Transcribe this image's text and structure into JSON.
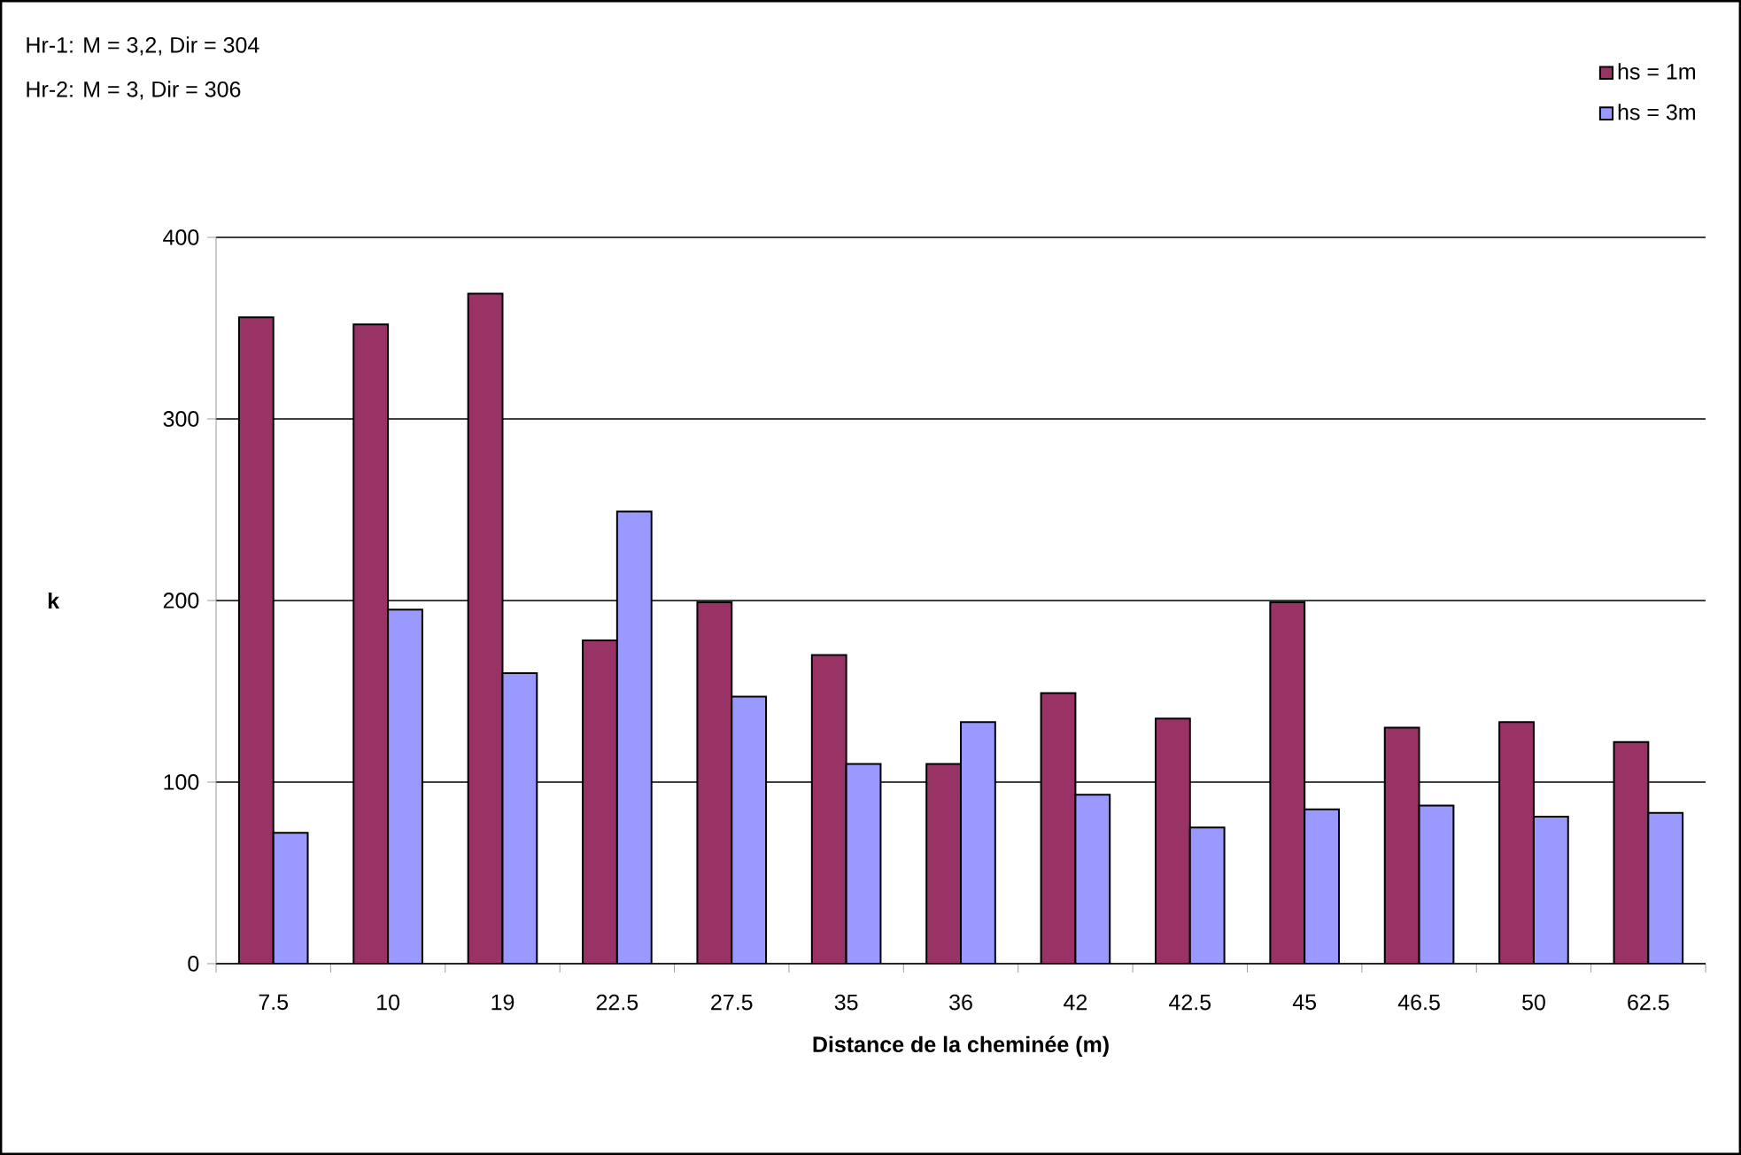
{
  "chart_data": {
    "type": "bar",
    "xlabel": "Distance de la cheminée (m)",
    "ylabel": "k",
    "categories": [
      "7.5",
      "10",
      "19",
      "22.5",
      "27.5",
      "35",
      "36",
      "42",
      "42.5",
      "45",
      "46.5",
      "50",
      "62.5"
    ],
    "series": [
      {
        "name": "hs = 1m",
        "color": "#993366",
        "values": [
          356,
          352,
          369,
          178,
          199,
          170,
          110,
          149,
          135,
          199,
          130,
          133,
          122
        ]
      },
      {
        "name": "hs = 3m",
        "color": "#9999ff",
        "values": [
          72,
          195,
          160,
          249,
          147,
          110,
          133,
          93,
          75,
          85,
          87,
          81,
          83
        ]
      }
    ],
    "ylim": [
      0,
      400
    ],
    "yticks": [
      0,
      100,
      200,
      300,
      400
    ],
    "grid": "y",
    "legend": "top right",
    "annotations": [
      "Hr-1: M = 3,2, Dir = 304",
      "Hr-2: M = 3, Dir = 306"
    ]
  }
}
